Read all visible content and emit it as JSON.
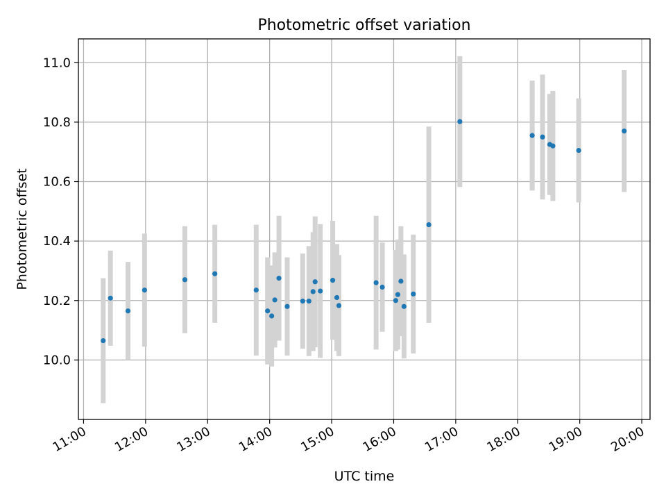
{
  "chart_data": {
    "type": "scatter",
    "title": "Photometric offset variation",
    "xlabel": "UTC time",
    "ylabel": "Photometric offset",
    "xlim": [
      "10:55",
      "20:08"
    ],
    "ylim": [
      9.8,
      11.08
    ],
    "x_ticks": [
      "11:00",
      "12:00",
      "13:00",
      "14:00",
      "15:00",
      "16:00",
      "17:00",
      "18:00",
      "19:00",
      "20:00"
    ],
    "y_ticks": [
      "10.0",
      "10.2",
      "10.4",
      "10.6",
      "10.8",
      "11.0"
    ],
    "grid": true,
    "colors": {
      "point": "#1f77b4",
      "errorbar": "#d3d3d3",
      "grid": "#b0b0b0"
    },
    "series": [
      {
        "points": [
          {
            "x": "11:19",
            "y": 10.065,
            "err": 0.21
          },
          {
            "x": "11:26",
            "y": 10.208,
            "err": 0.16
          },
          {
            "x": "11:43",
            "y": 10.165,
            "err": 0.165
          },
          {
            "x": "11:59",
            "y": 10.235,
            "err": 0.19
          },
          {
            "x": "12:38",
            "y": 10.27,
            "err": 0.18
          },
          {
            "x": "13:07",
            "y": 10.29,
            "err": 0.165
          },
          {
            "x": "13:47",
            "y": 10.235,
            "err": 0.22
          },
          {
            "x": "13:58",
            "y": 10.165,
            "err": 0.18
          },
          {
            "x": "14:02",
            "y": 10.148,
            "err": 0.17
          },
          {
            "x": "14:05",
            "y": 10.202,
            "err": 0.16
          },
          {
            "x": "14:09",
            "y": 10.275,
            "err": 0.21
          },
          {
            "x": "14:17",
            "y": 10.18,
            "err": 0.165
          },
          {
            "x": "14:32",
            "y": 10.198,
            "err": 0.16
          },
          {
            "x": "14:38",
            "y": 10.198,
            "err": 0.185
          },
          {
            "x": "14:42",
            "y": 10.23,
            "err": 0.2
          },
          {
            "x": "14:44",
            "y": 10.263,
            "err": 0.22
          },
          {
            "x": "14:49",
            "y": 10.232,
            "err": 0.225
          },
          {
            "x": "15:01",
            "y": 10.268,
            "err": 0.2
          },
          {
            "x": "15:05",
            "y": 10.21,
            "err": 0.18
          },
          {
            "x": "15:07",
            "y": 10.183,
            "err": 0.17
          },
          {
            "x": "15:43",
            "y": 10.26,
            "err": 0.225
          },
          {
            "x": "15:49",
            "y": 10.245,
            "err": 0.15
          },
          {
            "x": "16:02",
            "y": 10.2,
            "err": 0.17
          },
          {
            "x": "16:04",
            "y": 10.22,
            "err": 0.185
          },
          {
            "x": "16:07",
            "y": 10.265,
            "err": 0.185
          },
          {
            "x": "16:10",
            "y": 10.18,
            "err": 0.175
          },
          {
            "x": "16:19",
            "y": 10.222,
            "err": 0.2
          },
          {
            "x": "16:34",
            "y": 10.455,
            "err": 0.33
          },
          {
            "x": "17:04",
            "y": 10.802,
            "err": 0.22
          },
          {
            "x": "18:14",
            "y": 10.755,
            "err": 0.185
          },
          {
            "x": "18:24",
            "y": 10.75,
            "err": 0.21
          },
          {
            "x": "18:31",
            "y": 10.725,
            "err": 0.17
          },
          {
            "x": "18:34",
            "y": 10.72,
            "err": 0.185
          },
          {
            "x": "18:59",
            "y": 10.705,
            "err": 0.175
          },
          {
            "x": "19:43",
            "y": 10.77,
            "err": 0.205
          }
        ]
      }
    ]
  }
}
